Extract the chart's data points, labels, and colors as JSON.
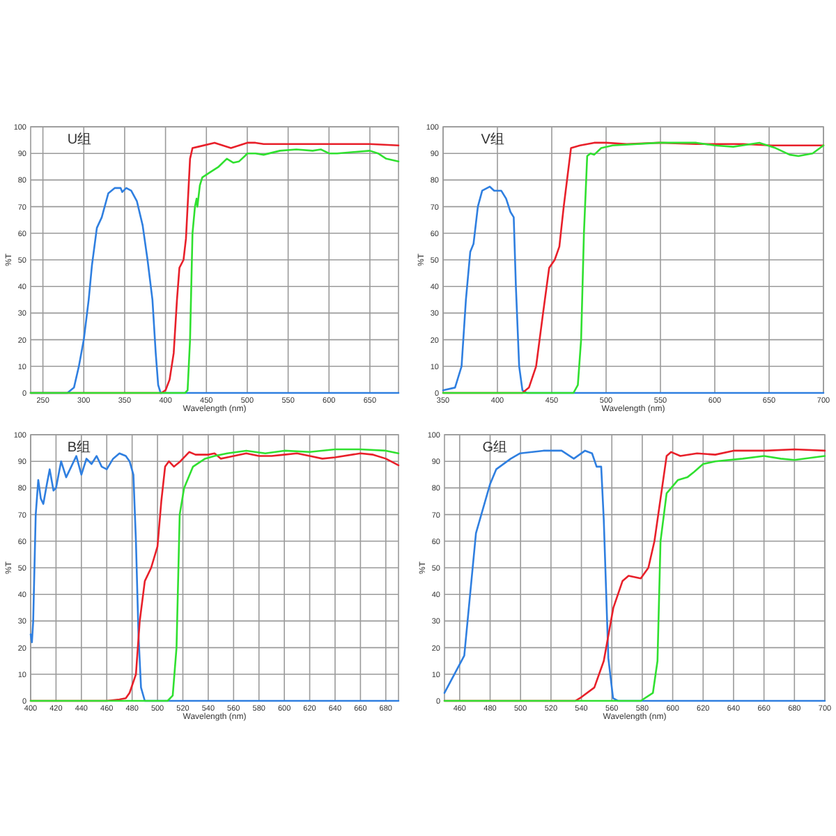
{
  "chart_data": [
    {
      "type": "line",
      "title": "U组",
      "xlabel": "Wavelength (nm)",
      "ylabel": "%T",
      "xlim": [
        235,
        685
      ],
      "xticks": [
        250,
        300,
        350,
        400,
        450,
        500,
        550,
        600,
        650
      ],
      "ylim": [
        0,
        100
      ],
      "yticks": [
        0,
        10,
        20,
        30,
        40,
        50,
        60,
        70,
        80,
        90,
        100
      ],
      "grid": true,
      "series": [
        {
          "color": "#2f7fe0",
          "x": [
            235,
            280,
            288,
            294,
            300,
            306,
            310,
            316,
            322,
            330,
            338,
            345,
            347,
            352,
            358,
            365,
            372,
            378,
            384,
            388,
            391,
            394,
            685
          ],
          "values": [
            0,
            0,
            2,
            10,
            20,
            35,
            48,
            62,
            66,
            75,
            77,
            77,
            75.5,
            77,
            76,
            72,
            63,
            50,
            35,
            15,
            3,
            0,
            0
          ]
        },
        {
          "color": "#e8202a",
          "x": [
            235,
            395,
            400,
            405,
            410,
            414,
            417,
            422,
            425,
            430,
            433,
            440,
            460,
            470,
            480,
            490,
            500,
            510,
            520,
            550,
            600,
            650,
            685
          ],
          "values": [
            0,
            0,
            1,
            5,
            15,
            35,
            47,
            50,
            58,
            88,
            92,
            92.5,
            94,
            93,
            92,
            93,
            94,
            94,
            93.5,
            93.5,
            93.5,
            93.5,
            93
          ]
        },
        {
          "color": "#30e030",
          "x": [
            235,
            424,
            427,
            430,
            433,
            436,
            438,
            439,
            442,
            445,
            455,
            465,
            475,
            483,
            490,
            497,
            500,
            510,
            520,
            540,
            560,
            580,
            590,
            600,
            610,
            630,
            650,
            660,
            670,
            685
          ],
          "values": [
            0,
            0,
            1,
            20,
            60,
            70,
            73,
            70,
            78,
            81,
            83,
            85,
            88,
            86.5,
            87,
            89,
            90,
            90,
            89.5,
            91,
            91.5,
            91,
            91.5,
            90,
            90,
            90.5,
            91,
            90,
            88,
            87
          ]
        }
      ]
    },
    {
      "type": "line",
      "title": "V组",
      "xlabel": "Wavelength (nm)",
      "ylabel": "%T",
      "xlim": [
        350,
        700
      ],
      "xticks": [
        350,
        400,
        450,
        500,
        550,
        600,
        650,
        700
      ],
      "ylim": [
        0,
        100
      ],
      "yticks": [
        0,
        10,
        20,
        30,
        40,
        50,
        60,
        70,
        80,
        90,
        100
      ],
      "grid": true,
      "series": [
        {
          "color": "#2f7fe0",
          "x": [
            350,
            361,
            367,
            371,
            375,
            378,
            382,
            386,
            393,
            397,
            403.5,
            408,
            412,
            415,
            417,
            420,
            423,
            427,
            700
          ],
          "values": [
            1,
            2,
            10,
            35,
            53,
            56,
            70,
            76,
            77.5,
            76,
            76,
            73,
            68,
            66,
            40,
            10,
            1,
            0,
            0
          ]
        },
        {
          "color": "#e8202a",
          "x": [
            350,
            423,
            429,
            435.6,
            442,
            447.6,
            452.7,
            457,
            461,
            467.7,
            476,
            489,
            500,
            519,
            549,
            583,
            626,
            652,
            700
          ],
          "values": [
            0,
            0,
            2,
            10,
            30,
            47,
            50,
            55,
            70,
            92,
            93,
            94,
            94,
            93.5,
            94,
            93.5,
            93.5,
            93,
            93
          ]
        },
        {
          "color": "#30e030",
          "x": [
            350,
            470,
            474,
            477,
            479.6,
            482.6,
            485.6,
            489,
            495.5,
            506,
            549,
            583,
            600,
            617,
            641,
            656,
            669,
            677,
            690,
            700
          ],
          "values": [
            0,
            0,
            3,
            20,
            60,
            89,
            90,
            89.5,
            92,
            93,
            94,
            94,
            93,
            92.5,
            94,
            92,
            89.5,
            89,
            90,
            93
          ]
        }
      ]
    },
    {
      "type": "line",
      "title": "B组",
      "xlabel": "Wavelength (nm)",
      "ylabel": "%T",
      "xlim": [
        400,
        690
      ],
      "xticks": [
        400,
        420,
        440,
        460,
        480,
        500,
        520,
        540,
        560,
        580,
        600,
        620,
        640,
        660,
        680
      ],
      "ylim": [
        0,
        100
      ],
      "yticks": [
        0,
        10,
        20,
        30,
        40,
        50,
        60,
        70,
        80,
        90,
        100
      ],
      "grid": true,
      "series": [
        {
          "color": "#2f7fe0",
          "x": [
            400,
            401,
            402,
            404,
            406,
            408,
            410,
            413,
            415,
            418,
            420,
            424,
            428,
            432,
            436,
            440,
            444,
            448,
            452,
            456,
            460,
            465,
            470,
            475,
            478,
            481,
            483,
            485,
            487,
            490,
            690
          ],
          "values": [
            25,
            22,
            30,
            70,
            83,
            76,
            74,
            82,
            87,
            79,
            80,
            90,
            84,
            88,
            92,
            85,
            91,
            89,
            92,
            88,
            87,
            91,
            93,
            92,
            90,
            85,
            60,
            25,
            5,
            0,
            0
          ]
        },
        {
          "color": "#e8202a",
          "x": [
            400,
            460,
            470,
            475,
            478,
            483,
            486,
            490,
            495,
            500,
            503,
            506,
            509,
            513,
            518,
            525,
            530,
            540,
            545,
            550,
            555,
            570,
            580,
            590,
            600,
            610,
            620,
            630,
            640,
            660,
            670,
            680,
            690
          ],
          "values": [
            0,
            0,
            0.5,
            1,
            3,
            10,
            30,
            45,
            50,
            58,
            75,
            88,
            90,
            88,
            90,
            93.5,
            92.5,
            92.5,
            93,
            91,
            91.5,
            93,
            92,
            92,
            92.5,
            93,
            92,
            91,
            91.5,
            93,
            92.5,
            91,
            88.5
          ]
        },
        {
          "color": "#30e030",
          "x": [
            400,
            508,
            512,
            515,
            517.5,
            521,
            528,
            537.5,
            545,
            555,
            570,
            585,
            600,
            620,
            640,
            660,
            680,
            690
          ],
          "values": [
            0,
            0,
            2,
            20,
            70,
            80,
            88,
            91,
            92,
            93,
            94,
            93,
            94,
            93.5,
            94.5,
            94.5,
            94,
            93
          ]
        }
      ]
    },
    {
      "type": "line",
      "title": "G组",
      "xlabel": "Wavelength (nm)",
      "ylabel": "%T",
      "xlim": [
        450,
        700
      ],
      "xticks": [
        460,
        480,
        500,
        520,
        540,
        560,
        580,
        600,
        620,
        640,
        660,
        680,
        700
      ],
      "ylim": [
        0,
        100
      ],
      "yticks": [
        0,
        10,
        20,
        30,
        40,
        50,
        60,
        70,
        80,
        90,
        100
      ],
      "grid": true,
      "series": [
        {
          "color": "#2f7fe0",
          "x": [
            450,
            463,
            470.7,
            480,
            484,
            493.6,
            499.7,
            515,
            527,
            535,
            542.4,
            547,
            550,
            553,
            554.7,
            557.7,
            560.8,
            564,
            700
          ],
          "values": [
            3,
            17,
            63,
            81.5,
            87,
            91,
            93,
            94,
            94,
            91,
            94,
            93,
            88,
            88,
            68,
            16,
            1,
            0,
            0
          ]
        },
        {
          "color": "#e8202a",
          "x": [
            450,
            536,
            539,
            548.5,
            554.7,
            561,
            567,
            571,
            579,
            584,
            588,
            593,
            596,
            599,
            605,
            616,
            628,
            640,
            661.5,
            680,
            700
          ],
          "values": [
            0,
            0,
            1,
            5,
            15,
            35,
            45,
            47,
            46,
            50,
            60,
            80,
            92,
            93.5,
            92,
            93,
            92.5,
            94,
            94,
            94.5,
            94
          ]
        },
        {
          "color": "#30e030",
          "x": [
            450,
            579,
            587,
            590,
            592,
            596,
            603.5,
            609.6,
            614,
            620,
            628,
            646,
            660,
            671,
            680,
            700
          ],
          "values": [
            0,
            0,
            3,
            15,
            60,
            78,
            83,
            84,
            86,
            89,
            90,
            91,
            92,
            91,
            90.5,
            92
          ]
        }
      ]
    }
  ]
}
